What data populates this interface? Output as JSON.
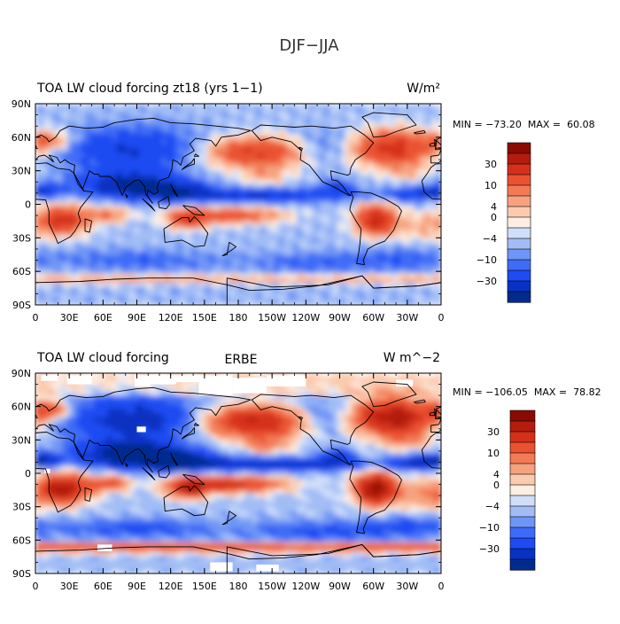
{
  "figure": {
    "title": "DJF−JJA"
  },
  "colors": {
    "levels": [
      "#002a8e",
      "#0833c2",
      "#1e4bf2",
      "#3f6cf6",
      "#6f95f6",
      "#a2bdf6",
      "#d0defa",
      "#fdeee2",
      "#fbcbb0",
      "#f7a27f",
      "#f27b56",
      "#ea5230",
      "#d5301a",
      "#b31c0e",
      "#8b0b03"
    ]
  },
  "chart_data": [
    {
      "type": "heatmap",
      "subtype": "global-lat-lon-contour-map",
      "title_left": "TOA LW cloud forcing zt18 (yrs 1−1)",
      "title_center": "",
      "units": "W/m²",
      "stats": "MIN = −73.20  MAX =  60.08",
      "min": -73.2,
      "max": 60.08,
      "xlim": [
        0,
        360
      ],
      "ylim": [
        -90,
        90
      ],
      "x_tick_labels": [
        "0",
        "30E",
        "60E",
        "90E",
        "120E",
        "150E",
        "180",
        "150W",
        "120W",
        "90W",
        "60W",
        "30W",
        "0"
      ],
      "y_tick_labels": [
        "90N",
        "60N",
        "30N",
        "0",
        "30S",
        "60S",
        "90S"
      ],
      "colorbar_labels": [
        "30",
        "10",
        "4",
        "0",
        "−4",
        "−10",
        "−30"
      ],
      "missing_regions": []
    },
    {
      "type": "heatmap",
      "subtype": "global-lat-lon-contour-map",
      "title_left": "TOA LW cloud forcing",
      "title_center": "ERBE",
      "units": "W m^−2",
      "stats": "MIN = −106.05  MAX =  78.82",
      "min": -106.05,
      "max": 78.82,
      "xlim": [
        0,
        360
      ],
      "ylim": [
        -90,
        90
      ],
      "x_tick_labels": [
        "0",
        "30E",
        "60E",
        "90E",
        "120E",
        "150E",
        "180",
        "150W",
        "120W",
        "90W",
        "60W",
        "30W",
        "0"
      ],
      "y_tick_labels": [
        "90N",
        "60N",
        "30N",
        "0",
        "30S",
        "60S",
        "90S"
      ],
      "colorbar_labels": [
        "30",
        "10",
        "4",
        "0",
        "−4",
        "−10",
        "−30"
      ],
      "missing_regions": [
        {
          "lon": [
            5,
            20
          ],
          "lat": [
            83,
            88
          ]
        },
        {
          "lon": [
            28,
            50
          ],
          "lat": [
            80,
            88
          ]
        },
        {
          "lon": [
            88,
            102
          ],
          "lat": [
            78,
            88
          ]
        },
        {
          "lon": [
            102,
            125
          ],
          "lat": [
            80,
            88
          ]
        },
        {
          "lon": [
            125,
            145
          ],
          "lat": [
            82,
            88
          ]
        },
        {
          "lon": [
            145,
            175
          ],
          "lat": [
            70,
            88
          ]
        },
        {
          "lon": [
            175,
            205
          ],
          "lat": [
            72,
            86
          ]
        },
        {
          "lon": [
            205,
            240
          ],
          "lat": [
            78,
            88
          ]
        },
        {
          "lon": [
            320,
            335
          ],
          "lat": [
            78,
            84
          ]
        },
        {
          "lon": [
            90,
            98
          ],
          "lat": [
            37,
            42
          ]
        },
        {
          "lon": [
            8,
            13
          ],
          "lat": [
            0,
            4
          ]
        },
        {
          "lon": [
            55,
            68
          ],
          "lat": [
            -70,
            -64
          ]
        },
        {
          "lon": [
            155,
            175
          ],
          "lat": [
            -88,
            -80
          ]
        },
        {
          "lon": [
            196,
            216
          ],
          "lat": [
            -88,
            -82
          ]
        }
      ]
    }
  ]
}
